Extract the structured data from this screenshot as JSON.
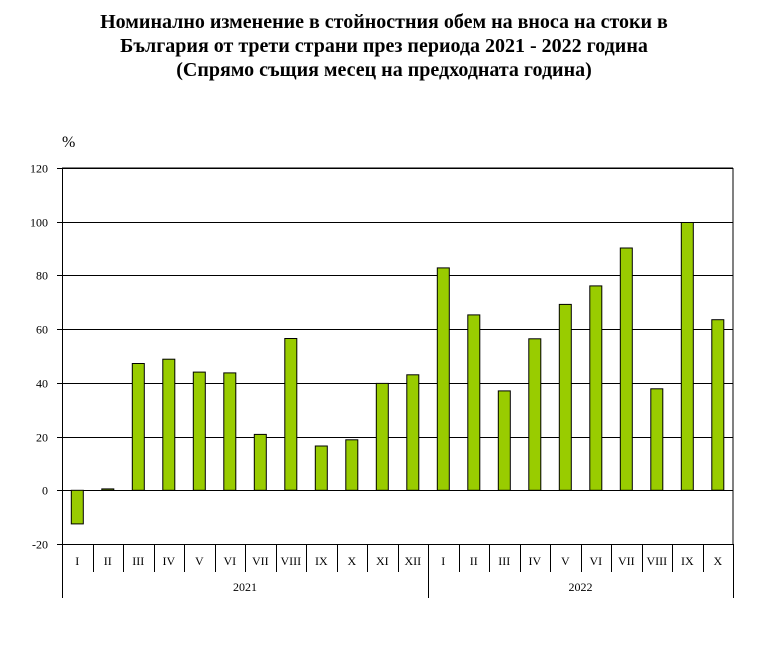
{
  "title": {
    "line1": "Номинално изменение в стойностния обем на вноса на стоки в",
    "line2": "България от трети страни през периода 2021 - 2022 година",
    "line3": "(Спрямо същия месец на предходната година)"
  },
  "chart_data": {
    "type": "bar",
    "title": "Номинално изменение в стойностния обем на вноса на стоки в България от трети страни през периода 2021 - 2022 година (Спрямо същия месец на предходната година)",
    "ylabel": "%",
    "ylim": [
      -20,
      120
    ],
    "yticks": [
      -20,
      0,
      20,
      40,
      60,
      80,
      100,
      120
    ],
    "grid": true,
    "colors": {
      "bar": "#99cc00",
      "bar_border": "#000000",
      "grid": "#000000"
    },
    "categories": [
      "I",
      "II",
      "III",
      "IV",
      "V",
      "VI",
      "VII",
      "VIII",
      "IX",
      "X",
      "XI",
      "XII",
      "I",
      "II",
      "III",
      "IV",
      "V",
      "VI",
      "VII",
      "VIII",
      "IX",
      "X"
    ],
    "groups": [
      {
        "label": "2021",
        "count": 12
      },
      {
        "label": "2022",
        "count": 10
      }
    ],
    "values": [
      -12.5,
      0.5,
      47.2,
      48.8,
      44.0,
      43.7,
      20.8,
      56.5,
      16.5,
      18.8,
      39.8,
      43.0,
      82.8,
      65.3,
      37.0,
      56.4,
      69.2,
      76.1,
      90.2,
      37.8,
      99.7,
      63.5
    ]
  }
}
